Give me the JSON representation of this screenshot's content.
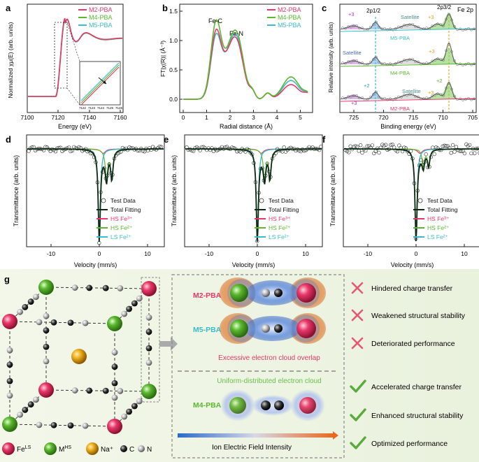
{
  "colors": {
    "m2": "#e8386a",
    "m4": "#5bb82e",
    "m5": "#3bbcc8",
    "total": "#0b2a12",
    "fe": "#e8386a",
    "m": "#5bb82e",
    "na": "#f0b020",
    "neg": "#e05070",
    "pos": "#6ac04a",
    "x": "#e25a74",
    "check": "#5aaa3c"
  },
  "panel_a": {
    "label": "a",
    "legend": [
      "M2-PBA",
      "M4-PBA",
      "M5-PBA"
    ],
    "ylabel": "Normalized χμ(E) (arb. units)",
    "xlabel": "Energy (eV)",
    "xticks": [
      "7100",
      "7120",
      "7140",
      "7160"
    ],
    "inset_xticks": [
      "7122",
      "7123",
      "7124",
      "7125",
      "7126"
    ]
  },
  "panel_b": {
    "label": "b",
    "legend": [
      "M2-PBA",
      "M4-PBA",
      "M5-PBA"
    ],
    "ylabel": "FT|χ(R)| (Å⁻³)",
    "xlabel": "Radial distance (Å)",
    "xticks": [
      "0",
      "1",
      "2",
      "3",
      "4",
      "5"
    ],
    "yticks": [
      "0.0",
      "0.5",
      "1.0",
      "1.5"
    ],
    "peaks": [
      "Fe-C",
      "Fe-N"
    ]
  },
  "panel_c": {
    "label": "c",
    "title": "Fe 2p",
    "ylabel": "Relative intensity (arb. units)",
    "xlabel": "Binding energy (eV)",
    "xticks": [
      "725",
      "720",
      "715",
      "710",
      "705"
    ],
    "peak_12": "2p1/2",
    "peak_32": "2p3/2",
    "satellite": "Satellite",
    "samples": [
      "M5-PBA",
      "M4-PBA",
      "M2-PBA"
    ],
    "ox_plus3": "+3",
    "ox_plus2": "+2"
  },
  "mossbauer": {
    "labels": [
      "d",
      "e",
      "f"
    ],
    "ylabel": "Transmittance (arb. units)",
    "xlabel": "Velocity (mm/s)",
    "xticks": [
      "-10",
      "0",
      "10"
    ],
    "legend": [
      "Test Data",
      "Total Fitting",
      "HS Fe³⁺",
      "HS Fe²⁺",
      "LS Fe²⁺"
    ]
  },
  "panel_g": {
    "label": "g",
    "legend": [
      "FeLS",
      "MHS",
      "Na⁺",
      "C",
      "N"
    ],
    "rows": [
      "M2-PBA",
      "M5-PBA",
      "M4-PBA"
    ],
    "overlap_note": "Excessive electron cloud overlap",
    "uniform_note": "Uniform-distributed electron cloud",
    "field_label": "Ion Electric Field Intensity",
    "bad": [
      "Hindered charge transfer",
      "Weakened structural stability",
      "Deteriorated performance"
    ],
    "good": [
      "Accelerated charge transfer",
      "Enhanced structural stability",
      "Optimized performance"
    ]
  }
}
